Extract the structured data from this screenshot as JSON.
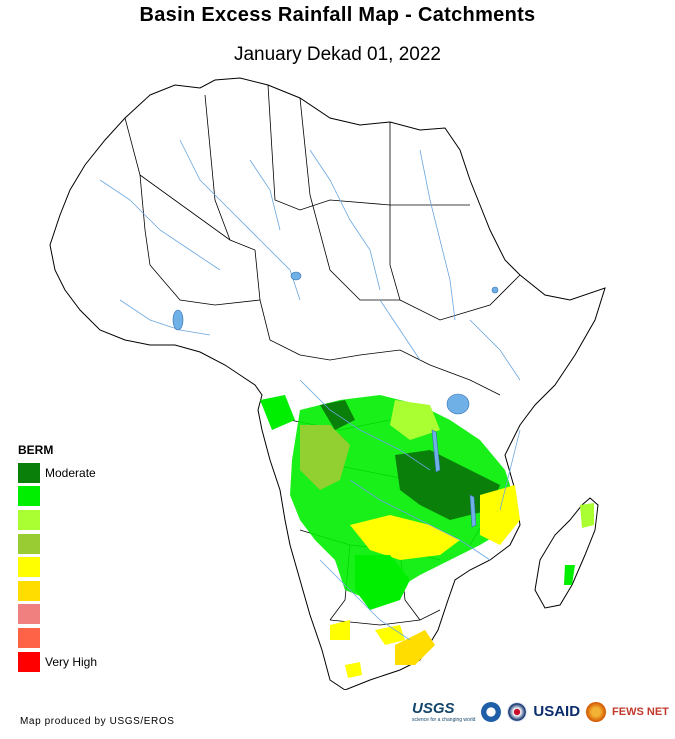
{
  "map": {
    "title": "Basin Excess Rainfall Map - Catchments",
    "subtitle": "January Dekad 01, 2022"
  },
  "legend": {
    "title": "BERM",
    "items": [
      {
        "label": "Moderate",
        "color": "#0a7f0a"
      },
      {
        "label": "",
        "color": "#00ee00"
      },
      {
        "label": "",
        "color": "#aaff33"
      },
      {
        "label": "",
        "color": "#99cc33"
      },
      {
        "label": "",
        "color": "#ffff00"
      },
      {
        "label": "",
        "color": "#ffdd00"
      },
      {
        "label": "",
        "color": "#f08080"
      },
      {
        "label": "",
        "color": "#ff6347"
      },
      {
        "label": "Very High",
        "color": "#ff0000"
      }
    ]
  },
  "footer": {
    "credit": "Map produced by USGS/EROS",
    "logos": {
      "usgs": "USGS",
      "usgs_tagline": "science for a changing world",
      "usaid": "USAID",
      "fews": "FEWS NET"
    }
  },
  "colors": {
    "river": "#6aa6dc",
    "lake": "#6fb0e6",
    "border": "#000000"
  }
}
